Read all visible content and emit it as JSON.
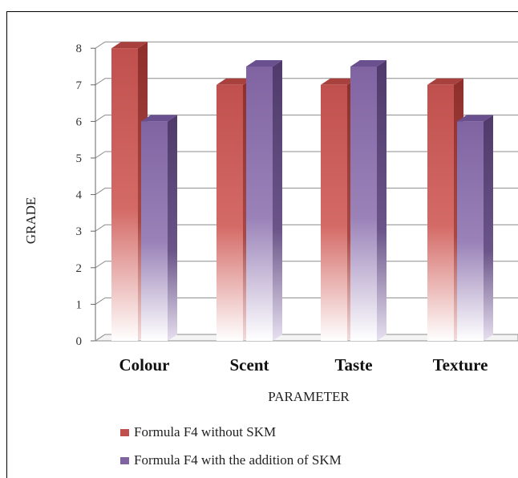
{
  "chart_data": {
    "type": "bar",
    "subtype": "3d-clustered-column",
    "categories": [
      "Colour",
      "Scent",
      "Taste",
      "Texture"
    ],
    "series": [
      {
        "name": "Formula F4 without SKM",
        "values": [
          8,
          7,
          7,
          7
        ],
        "color": "#c0504d"
      },
      {
        "name": "Formula F4 with the addition of SKM",
        "values": [
          6,
          7.5,
          7.5,
          6
        ],
        "color": "#8064a2"
      }
    ],
    "xlabel": "PARAMETER",
    "ylabel": "GRADE",
    "ylim": [
      0,
      8
    ],
    "yticks": [
      0,
      1,
      2,
      3,
      4,
      5,
      6,
      7,
      8
    ],
    "grid": true,
    "legend_position": "bottom-left"
  }
}
